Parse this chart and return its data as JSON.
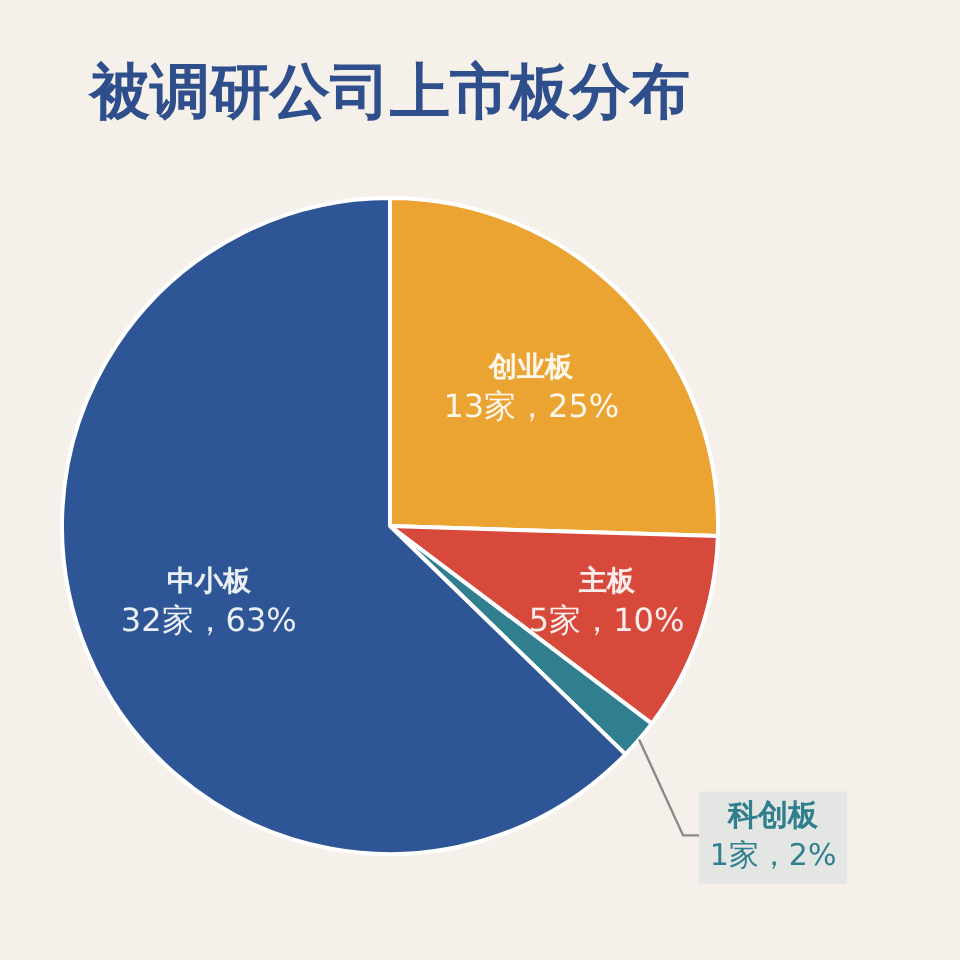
{
  "chart_data": {
    "type": "pie",
    "title": "被调研公司上市板分布",
    "categories": [
      "创业板",
      "主板",
      "科创板",
      "中小板"
    ],
    "values": [
      13,
      5,
      1,
      32
    ],
    "value_labels": [
      "13家，25%",
      "5家，10%",
      "1家，2%",
      "32家，63%"
    ],
    "colors": [
      "#eba332",
      "#d7493b",
      "#2f7f8e",
      "#2e5596"
    ],
    "legend": false
  }
}
